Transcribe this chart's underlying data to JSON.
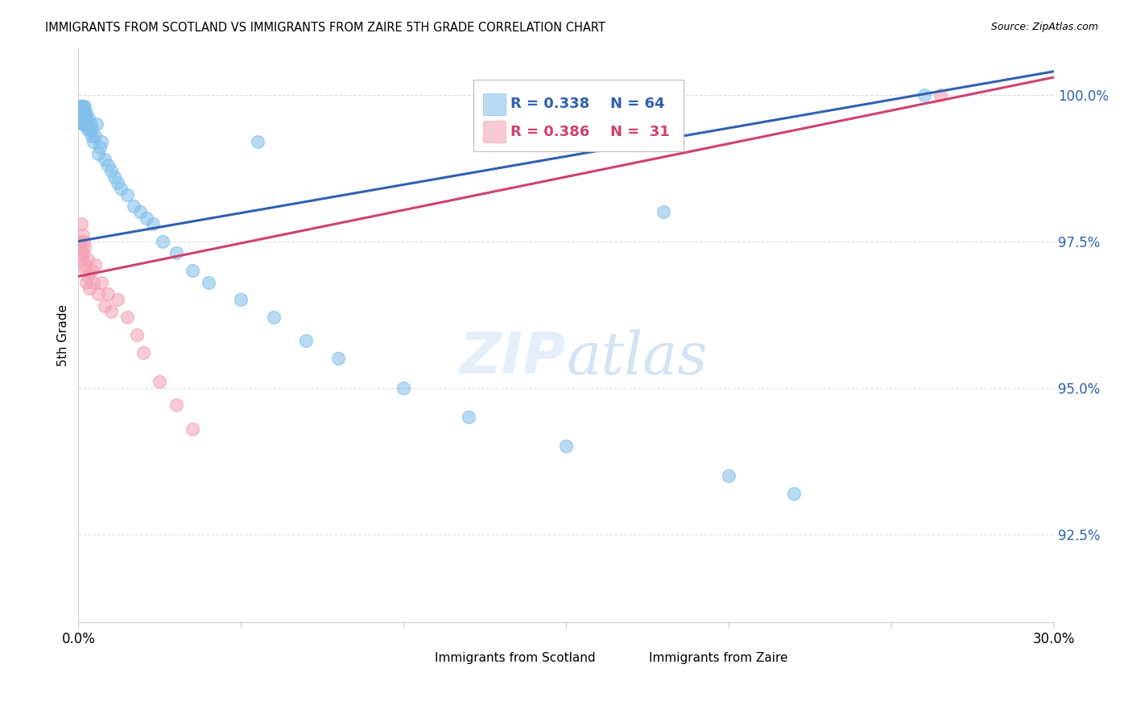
{
  "title": "IMMIGRANTS FROM SCOTLAND VS IMMIGRANTS FROM ZAIRE 5TH GRADE CORRELATION CHART",
  "source": "Source: ZipAtlas.com",
  "ylabel_label": "5th Grade",
  "ytick_labels": [
    "92.5%",
    "95.0%",
    "97.5%",
    "100.0%"
  ],
  "ytick_values": [
    92.5,
    95.0,
    97.5,
    100.0
  ],
  "blue_color": "#7fbfea",
  "pink_color": "#f4a0b5",
  "blue_line_color": "#3060b0",
  "pink_line_color": "#d04070",
  "legend_r_color": "#3060b0",
  "legend_r_pink_color": "#d04070",
  "watermark_zip": "ZIP",
  "watermark_atlas": "atlas",
  "xmin": 0.0,
  "xmax": 30.0,
  "ymin": 91.0,
  "ymax": 100.8,
  "blue_trend_x0": 0.0,
  "blue_trend_y0": 97.5,
  "blue_trend_x1": 30.0,
  "blue_trend_y1": 100.4,
  "pink_trend_x0": 0.0,
  "pink_trend_y0": 96.9,
  "pink_trend_x1": 30.0,
  "pink_trend_y1": 100.3,
  "scotland_x": [
    0.05,
    0.06,
    0.07,
    0.08,
    0.09,
    0.1,
    0.1,
    0.11,
    0.12,
    0.13,
    0.14,
    0.15,
    0.15,
    0.16,
    0.17,
    0.18,
    0.19,
    0.2,
    0.2,
    0.21,
    0.22,
    0.23,
    0.25,
    0.26,
    0.28,
    0.3,
    0.32,
    0.35,
    0.38,
    0.4,
    0.42,
    0.45,
    0.5,
    0.55,
    0.6,
    0.65,
    0.7,
    0.8,
    0.9,
    1.0,
    1.1,
    1.2,
    1.3,
    1.5,
    1.7,
    1.9,
    2.1,
    2.3,
    2.6,
    3.0,
    3.5,
    4.0,
    5.0,
    6.0,
    5.5,
    7.0,
    8.0,
    10.0,
    12.0,
    15.0,
    18.0,
    20.0,
    22.0,
    26.0
  ],
  "scotland_y": [
    99.7,
    99.6,
    99.8,
    99.7,
    99.6,
    99.8,
    99.7,
    99.6,
    99.8,
    99.5,
    99.7,
    99.6,
    99.8,
    99.5,
    99.7,
    99.6,
    99.5,
    99.7,
    99.8,
    99.6,
    99.5,
    99.7,
    99.6,
    99.5,
    99.4,
    99.5,
    99.6,
    99.4,
    99.5,
    99.3,
    99.4,
    99.2,
    99.3,
    99.5,
    99.0,
    99.1,
    99.2,
    98.9,
    98.8,
    98.7,
    98.6,
    98.5,
    98.4,
    98.3,
    98.1,
    98.0,
    97.9,
    97.8,
    97.5,
    97.3,
    97.0,
    96.8,
    96.5,
    96.2,
    99.2,
    95.8,
    95.5,
    95.0,
    94.5,
    94.0,
    98.0,
    93.5,
    93.2,
    100.0
  ],
  "zaire_x": [
    0.05,
    0.07,
    0.08,
    0.1,
    0.12,
    0.13,
    0.15,
    0.17,
    0.18,
    0.2,
    0.22,
    0.25,
    0.28,
    0.3,
    0.35,
    0.4,
    0.45,
    0.5,
    0.6,
    0.7,
    0.8,
    0.9,
    1.0,
    1.2,
    1.5,
    1.8,
    2.0,
    2.5,
    3.0,
    3.5,
    26.5
  ],
  "zaire_y": [
    97.5,
    97.3,
    97.8,
    97.4,
    97.2,
    97.6,
    97.3,
    97.5,
    97.1,
    97.4,
    97.0,
    96.8,
    97.2,
    96.9,
    96.7,
    97.0,
    96.8,
    97.1,
    96.6,
    96.8,
    96.4,
    96.6,
    96.3,
    96.5,
    96.2,
    95.9,
    95.6,
    95.1,
    94.7,
    94.3,
    100.0
  ]
}
